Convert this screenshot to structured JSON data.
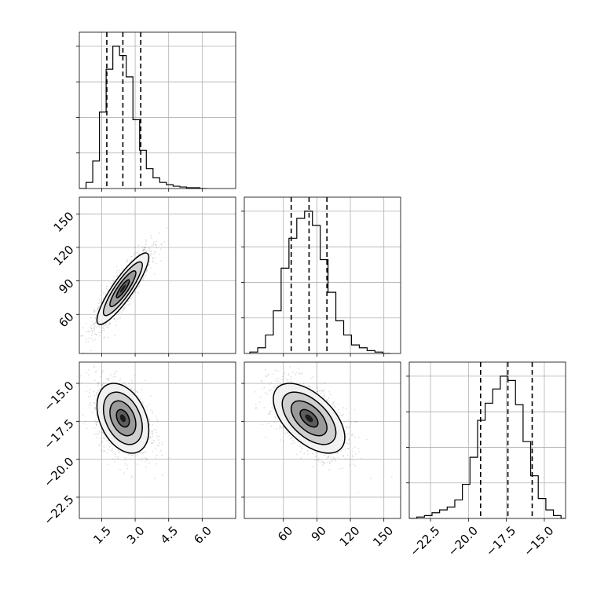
{
  "chart_data": {
    "type": "corner",
    "params": [
      {
        "name": "",
        "range": [
          0.5,
          7.5
        ],
        "ticks": [
          1.5,
          3.0,
          4.5,
          6.0
        ],
        "tick_labels": [
          "1.5",
          "3.0",
          "4.5",
          "6.0"
        ]
      },
      {
        "name": "",
        "range": [
          25,
          165
        ],
        "ticks": [
          60,
          90,
          120,
          150
        ],
        "tick_labels": [
          "60",
          "90",
          "120",
          "150"
        ]
      },
      {
        "name": "",
        "range": [
          -23.9,
          -13.6
        ],
        "ticks": [
          -22.5,
          -20.0,
          -17.5,
          -15.0
        ],
        "tick_labels": [
          "−22.5",
          "−20.0",
          "−17.5",
          "−15.0"
        ]
      }
    ],
    "histograms": [
      {
        "param": 0,
        "bin_edges": [
          0.5,
          0.8,
          1.1,
          1.4,
          1.7,
          2.0,
          2.3,
          2.6,
          2.9,
          3.2,
          3.5,
          3.8,
          4.1,
          4.4,
          4.7,
          5.0,
          5.3,
          5.6,
          5.9,
          6.2
        ],
        "counts": [
          0.0,
          0.04,
          0.18,
          0.5,
          0.78,
          0.93,
          0.87,
          0.73,
          0.45,
          0.25,
          0.13,
          0.07,
          0.04,
          0.025,
          0.015,
          0.01,
          0.005,
          0.005,
          0.0
        ],
        "quantiles": [
          1.73,
          2.45,
          3.25
        ]
      },
      {
        "param": 1,
        "bin_edges": [
          30,
          37,
          44,
          51,
          58,
          65,
          72,
          79,
          86,
          93,
          100,
          107,
          114,
          121,
          128,
          135,
          142,
          149,
          156
        ],
        "counts": [
          0.01,
          0.04,
          0.13,
          0.3,
          0.6,
          0.81,
          0.95,
          1.0,
          0.9,
          0.66,
          0.43,
          0.23,
          0.13,
          0.06,
          0.04,
          0.02,
          0.01,
          0.0
        ],
        "quantiles": [
          67,
          83,
          99
        ]
      },
      {
        "param": 2,
        "bin_edges": [
          -23.9,
          -23.4,
          -22.9,
          -22.4,
          -21.9,
          -21.4,
          -20.9,
          -20.4,
          -19.9,
          -19.4,
          -18.9,
          -18.4,
          -17.9,
          -17.4,
          -16.9,
          -16.4,
          -15.9,
          -15.4,
          -14.9,
          -14.4,
          -13.9,
          -13.6
        ],
        "counts": [
          0.0,
          0.01,
          0.02,
          0.04,
          0.06,
          0.08,
          0.13,
          0.24,
          0.43,
          0.69,
          0.81,
          0.91,
          1.0,
          0.97,
          0.8,
          0.54,
          0.3,
          0.14,
          0.06,
          0.02,
          0.0
        ],
        "quantiles": [
          -19.2,
          -17.4,
          -15.8
        ]
      }
    ],
    "pairs": [
      {
        "x": 0,
        "y": 1,
        "mean": [
          2.45,
          83
        ],
        "sd": [
          0.58,
          16
        ],
        "corr": 0.88
      },
      {
        "x": 0,
        "y": 2,
        "mean": [
          2.45,
          -17.3
        ],
        "sd": [
          0.58,
          1.15
        ],
        "corr": -0.35
      },
      {
        "x": 1,
        "y": 2,
        "mean": [
          83,
          -17.3
        ],
        "sd": [
          16,
          1.15
        ],
        "corr": -0.55
      }
    ],
    "contour_levels": [
      0.5,
      1.0,
      1.5,
      2.0
    ],
    "grid": true,
    "quantile_line_style": "dashed"
  }
}
